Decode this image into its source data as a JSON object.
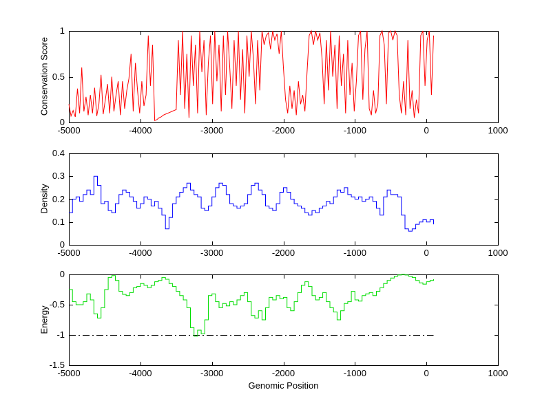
{
  "figure": {
    "background": "#ffffff",
    "xlabel": "Genomic Position",
    "axis_color": "#000000"
  },
  "chart_data": [
    {
      "type": "line",
      "ylabel": "Conservation Score",
      "line_color": "#ff0000",
      "draw_style": "line",
      "xlim": [
        -5000,
        1000
      ],
      "ylim": [
        0,
        1
      ],
      "x_tick_labels": [
        "-5000",
        "-4000",
        "-3000",
        "-2000",
        "-1000",
        "0",
        "1000"
      ],
      "x_ticks": [
        -5000,
        -4000,
        -3000,
        -2000,
        -1000,
        0,
        1000
      ],
      "y_tick_labels": [
        "0",
        "0.5",
        "1"
      ],
      "y_ticks": [
        0,
        0.5,
        1
      ],
      "x_start": -5000,
      "x_step": 30,
      "values": [
        0.2,
        0.07,
        0.13,
        0.06,
        0.37,
        0.1,
        0.6,
        0.12,
        0.28,
        0.08,
        0.3,
        0.1,
        0.38,
        0.07,
        0.2,
        0.52,
        0.09,
        0.25,
        0.42,
        0.1,
        0.5,
        0.12,
        0.3,
        0.45,
        0.08,
        0.45,
        0.15,
        0.35,
        0.48,
        0.75,
        0.12,
        0.65,
        0.35,
        0.1,
        0.45,
        0.18,
        0.3,
        0.95,
        0.4,
        0.85,
        0.02,
        0.03,
        0.05,
        0.06,
        0.08,
        0.09,
        0.1,
        0.11,
        0.12,
        0.13,
        0.14,
        0.9,
        0.3,
        1.0,
        0.15,
        0.75,
        0.05,
        0.95,
        0.4,
        0.85,
        0.1,
        1.0,
        0.55,
        0.9,
        0.08,
        0.65,
        0.95,
        0.2,
        1.0,
        0.45,
        0.85,
        0.12,
        0.95,
        0.3,
        1.0,
        0.6,
        0.15,
        0.9,
        0.4,
        1.0,
        0.25,
        0.8,
        0.1,
        0.95,
        0.5,
        1.0,
        0.7,
        0.2,
        0.9,
        0.35,
        1.0,
        0.85,
        0.95,
        0.98,
        0.8,
        1.0,
        0.9,
        0.97,
        0.75,
        1.0,
        0.6,
        0.25,
        0.1,
        0.4,
        0.15,
        0.35,
        0.08,
        0.45,
        0.2,
        0.3,
        0.12,
        0.55,
        0.95,
        1.0,
        0.85,
        1.0,
        0.9,
        0.98,
        0.7,
        0.2,
        0.9,
        0.35,
        1.0,
        0.5,
        0.85,
        0.15,
        0.95,
        0.4,
        0.75,
        0.1,
        0.9,
        0.3,
        0.65,
        0.12,
        0.45,
        0.95,
        1.0,
        0.25,
        0.8,
        1.0,
        0.15,
        0.08,
        0.35,
        0.1,
        0.2,
        0.95,
        1.0,
        0.85,
        0.2,
        0.98,
        1.0,
        0.9,
        1.0,
        0.95,
        0.3,
        0.1,
        0.45,
        0.08,
        0.9,
        0.15,
        0.35,
        0.05,
        0.25,
        0.1,
        0.95,
        1.0,
        0.4,
        0.9,
        1.0,
        0.3,
        0.95
      ]
    },
    {
      "type": "line",
      "ylabel": "Density",
      "line_color": "#0000ff",
      "draw_style": "steps",
      "xlim": [
        -5000,
        1000
      ],
      "ylim": [
        0,
        0.4
      ],
      "x_tick_labels": [
        "-5000",
        "-4000",
        "-3000",
        "-2000",
        "-1000",
        "0",
        "1000"
      ],
      "x_ticks": [
        -5000,
        -4000,
        -3000,
        -2000,
        -1000,
        0,
        1000
      ],
      "y_tick_labels": [
        "0",
        "0.1",
        "0.2",
        "0.3",
        "0.4"
      ],
      "y_ticks": [
        0,
        0.1,
        0.2,
        0.3,
        0.4
      ],
      "x_start": -5000,
      "x_step": 50,
      "values": [
        0.14,
        0.2,
        0.21,
        0.19,
        0.22,
        0.24,
        0.22,
        0.3,
        0.26,
        0.18,
        0.19,
        0.15,
        0.14,
        0.18,
        0.22,
        0.24,
        0.23,
        0.21,
        0.19,
        0.16,
        0.18,
        0.21,
        0.2,
        0.17,
        0.19,
        0.16,
        0.13,
        0.07,
        0.12,
        0.18,
        0.21,
        0.23,
        0.25,
        0.27,
        0.24,
        0.22,
        0.21,
        0.16,
        0.15,
        0.17,
        0.21,
        0.25,
        0.27,
        0.26,
        0.22,
        0.18,
        0.17,
        0.16,
        0.17,
        0.18,
        0.22,
        0.26,
        0.27,
        0.24,
        0.22,
        0.17,
        0.16,
        0.15,
        0.18,
        0.23,
        0.25,
        0.23,
        0.2,
        0.18,
        0.17,
        0.16,
        0.14,
        0.13,
        0.15,
        0.14,
        0.16,
        0.17,
        0.19,
        0.18,
        0.21,
        0.24,
        0.23,
        0.25,
        0.22,
        0.21,
        0.2,
        0.21,
        0.19,
        0.2,
        0.21,
        0.19,
        0.16,
        0.13,
        0.21,
        0.24,
        0.22,
        0.22,
        0.21,
        0.13,
        0.07,
        0.06,
        0.07,
        0.09,
        0.1,
        0.11,
        0.1,
        0.11,
        0.09
      ]
    },
    {
      "type": "line",
      "ylabel": "Energy",
      "line_color": "#00dd00",
      "draw_style": "steps",
      "xlim": [
        -5000,
        1000
      ],
      "ylim": [
        -1.5,
        0
      ],
      "x_tick_labels": [
        "-5000",
        "-4000",
        "-3000",
        "-2000",
        "-1000",
        "0",
        "1000"
      ],
      "x_ticks": [
        -5000,
        -4000,
        -3000,
        -2000,
        -1000,
        0,
        1000
      ],
      "y_tick_labels": [
        "-1.5",
        "-1",
        "-0.5",
        "0"
      ],
      "y_ticks": [
        -1.5,
        -1,
        -0.5,
        0
      ],
      "x_start": -5000,
      "x_step": 50,
      "values": [
        -0.25,
        -0.45,
        -0.5,
        -0.5,
        -0.45,
        -0.32,
        -0.42,
        -0.65,
        -0.72,
        -0.55,
        -0.25,
        -0.05,
        -0.02,
        -0.1,
        -0.28,
        -0.33,
        -0.35,
        -0.3,
        -0.22,
        -0.2,
        -0.15,
        -0.18,
        -0.22,
        -0.18,
        -0.12,
        -0.1,
        -0.05,
        -0.08,
        -0.15,
        -0.2,
        -0.28,
        -0.35,
        -0.42,
        -0.55,
        -0.88,
        -1.02,
        -0.92,
        -0.98,
        -0.75,
        -0.35,
        -0.32,
        -0.45,
        -0.55,
        -0.48,
        -0.52,
        -0.45,
        -0.5,
        -0.42,
        -0.35,
        -0.3,
        -0.45,
        -0.68,
        -0.72,
        -0.6,
        -0.75,
        -0.55,
        -0.38,
        -0.42,
        -0.35,
        -0.4,
        -0.38,
        -0.55,
        -0.6,
        -0.45,
        -0.3,
        -0.18,
        -0.12,
        -0.2,
        -0.35,
        -0.42,
        -0.38,
        -0.3,
        -0.45,
        -0.55,
        -0.62,
        -0.75,
        -0.6,
        -0.48,
        -0.45,
        -0.28,
        -0.42,
        -0.44,
        -0.35,
        -0.32,
        -0.3,
        -0.35,
        -0.28,
        -0.22,
        -0.15,
        -0.1,
        -0.06,
        -0.03,
        -0.01,
        0.0,
        -0.01,
        -0.03,
        -0.05,
        -0.1,
        -0.14,
        -0.16,
        -0.12,
        -0.1,
        -0.08
      ],
      "reference_line": {
        "y": -1,
        "color": "#000000",
        "style": "dash-dot"
      }
    }
  ]
}
